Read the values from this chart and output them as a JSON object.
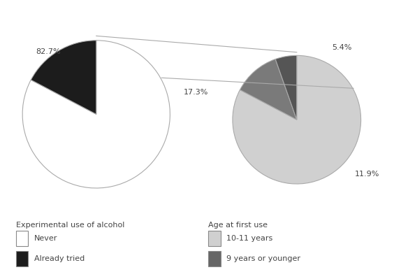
{
  "left_pie": {
    "values": [
      82.7,
      17.3
    ],
    "colors": [
      "#ffffff",
      "#1c1c1c"
    ],
    "labels": [
      "82.7%",
      "17.3%"
    ],
    "startangle": 90,
    "edge_color": "#aaaaaa",
    "edge_width": 0.8
  },
  "right_pie": {
    "values": [
      82.7,
      11.9,
      5.4
    ],
    "colors": [
      "#d0d0d0",
      "#7a7a7a",
      "#555555"
    ],
    "labels": [
      "",
      "11.9%",
      "5.4%"
    ],
    "startangle": 90,
    "edge_color": "#aaaaaa",
    "edge_width": 0.8
  },
  "connection_color": "#aaaaaa",
  "connection_linewidth": 0.8,
  "legend1_title": "Experimental use of alcohol",
  "legend1_items": [
    "Never",
    "Already tried"
  ],
  "legend1_colors": [
    "#ffffff",
    "#1c1c1c"
  ],
  "legend2_title": "Age at first use",
  "legend2_items": [
    "10-11 years",
    "9 years or younger"
  ],
  "legend2_colors": [
    "#d0d0d0",
    "#666666"
  ],
  "bg_color": "#ffffff",
  "label_fontsize": 8,
  "legend_fontsize": 8,
  "legend_title_fontsize": 8
}
